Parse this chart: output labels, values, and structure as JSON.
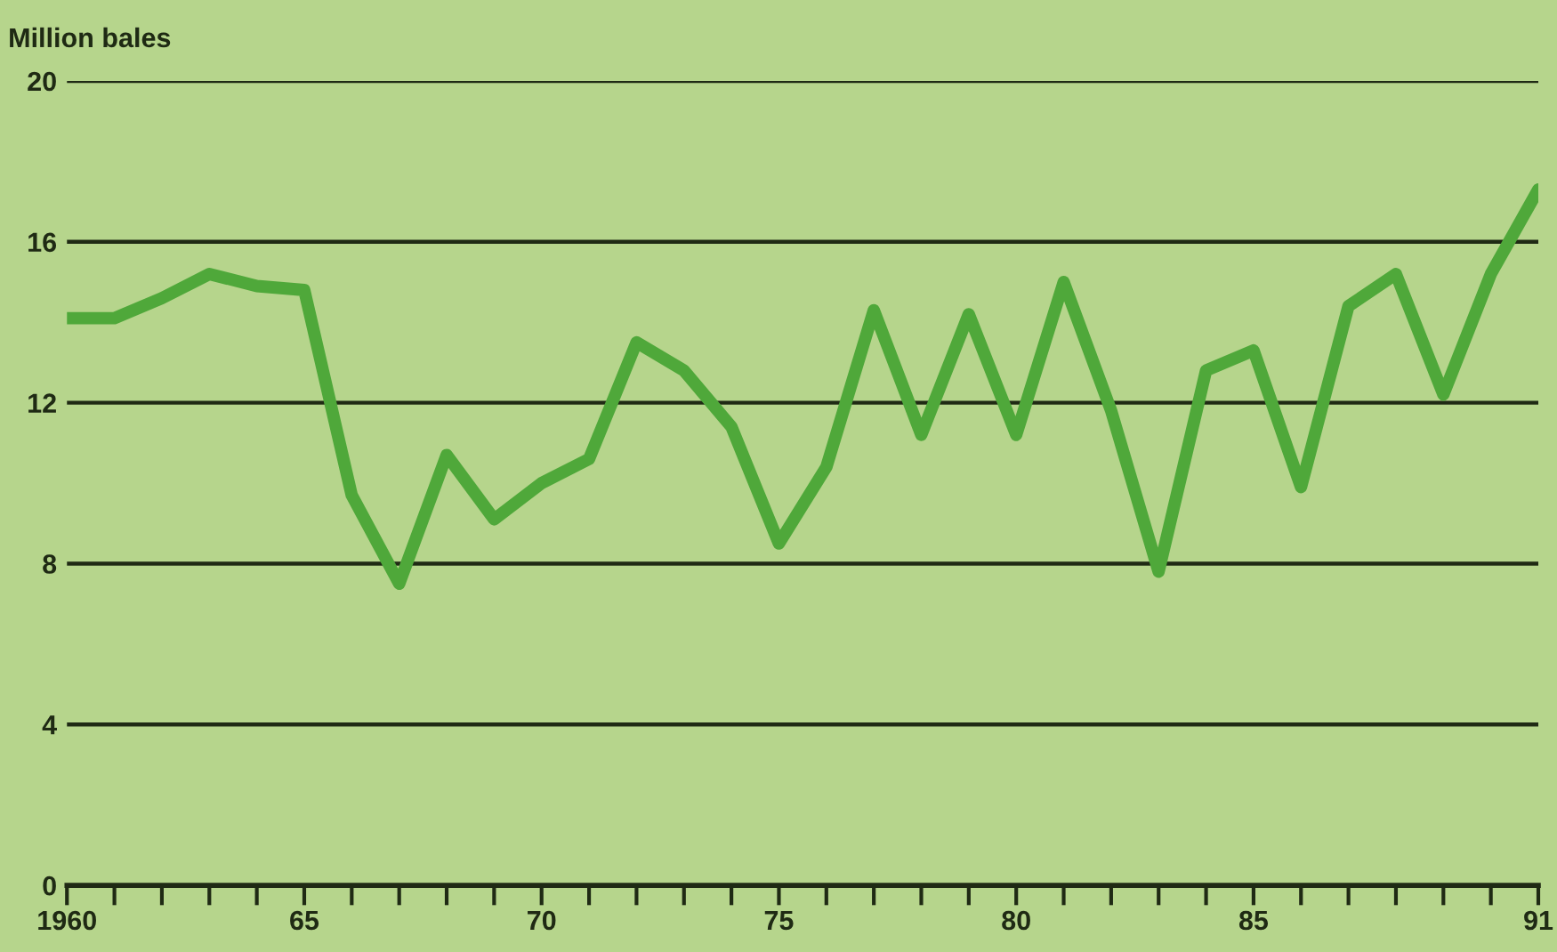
{
  "chart_data": {
    "type": "line",
    "ylabel": "Million bales",
    "x": [
      1960,
      1961,
      1962,
      1963,
      1964,
      1965,
      1966,
      1967,
      1968,
      1969,
      1970,
      1971,
      1972,
      1973,
      1974,
      1975,
      1976,
      1977,
      1978,
      1979,
      1980,
      1981,
      1982,
      1983,
      1984,
      1985,
      1986,
      1987,
      1988,
      1989,
      1990,
      1991
    ],
    "series": [
      {
        "color": "#4fa83a",
        "values": [
          14.1,
          14.1,
          14.6,
          15.2,
          14.9,
          14.8,
          9.7,
          7.5,
          10.7,
          9.1,
          10.0,
          10.6,
          13.5,
          12.8,
          11.4,
          8.5,
          10.4,
          14.3,
          11.2,
          14.2,
          11.2,
          15.0,
          11.8,
          7.8,
          12.8,
          13.3,
          9.9,
          14.4,
          15.2,
          12.2,
          15.2,
          17.3
        ]
      }
    ],
    "xlim": [
      1960,
      1991
    ],
    "xticks": [
      1960,
      {
        "value": 1961,
        "label": null
      },
      {
        "value": 1962,
        "label": null
      },
      {
        "value": 1963,
        "label": null
      },
      {
        "value": 1964,
        "label": null
      },
      {
        "value": 1965,
        "label": "65"
      },
      {
        "value": 1966,
        "label": null
      },
      {
        "value": 1967,
        "label": null
      },
      {
        "value": 1968,
        "label": null
      },
      {
        "value": 1969,
        "label": null
      },
      {
        "value": 1970,
        "label": "70"
      },
      {
        "value": 1971,
        "label": null
      },
      {
        "value": 1972,
        "label": null
      },
      {
        "value": 1973,
        "label": null
      },
      {
        "value": 1974,
        "label": null
      },
      {
        "value": 1975,
        "label": "75"
      },
      {
        "value": 1976,
        "label": null
      },
      {
        "value": 1977,
        "label": null
      },
      {
        "value": 1978,
        "label": null
      },
      {
        "value": 1979,
        "label": null
      },
      {
        "value": 1980,
        "label": "80"
      },
      {
        "value": 1981,
        "label": null
      },
      {
        "value": 1982,
        "label": null
      },
      {
        "value": 1983,
        "label": null
      },
      {
        "value": 1984,
        "label": null
      },
      {
        "value": 1985,
        "label": "85"
      },
      {
        "value": 1986,
        "label": null
      },
      {
        "value": 1987,
        "label": null
      },
      {
        "value": 1988,
        "label": null
      },
      {
        "value": 1989,
        "label": null
      },
      {
        "value": 1990,
        "label": null
      },
      {
        "value": 1991,
        "label": "91"
      }
    ],
    "ylim": [
      0,
      20
    ],
    "yticks": [
      0,
      4,
      8,
      12,
      16,
      20
    ],
    "grid": "y",
    "marker": "none",
    "line_style": "solid"
  }
}
